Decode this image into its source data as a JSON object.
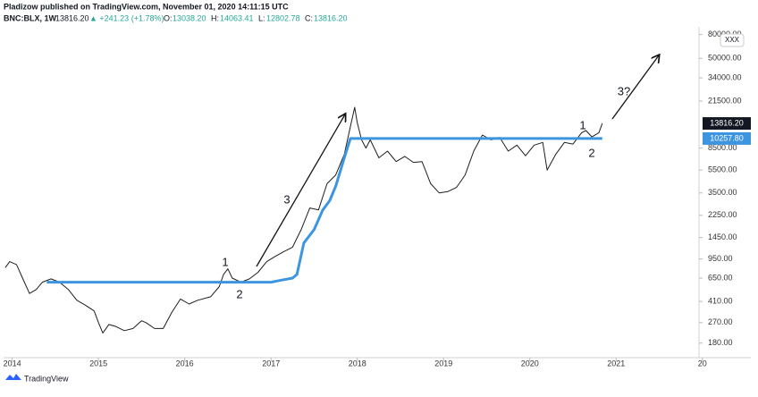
{
  "chart_data": {
    "type": "line",
    "title": "Pladizow published on TradingView.com, November 01, 2020 14:11:15 UTC",
    "quote": {
      "symbol": "BNC:BLX, 1W",
      "last": "13816.20",
      "change": "▲ +241.23 (+1.78%)",
      "o_label": "O:",
      "o": "13038.20",
      "h_label": "H:",
      "h": "14063.41",
      "l_label": "L:",
      "l": "12802.78",
      "c_label": "C:",
      "c": "13816.20"
    },
    "badge": "XXX",
    "footer": "TradingView",
    "log_scale": true,
    "grid": false,
    "xlim": [
      2013.9,
      2021.94
    ],
    "xticks": [
      2014,
      2015,
      2016,
      2017,
      2018,
      2019,
      2020,
      2021,
      {
        "value": 2022,
        "label": "20"
      }
    ],
    "ylim": [
      135,
      90000
    ],
    "yticks": [
      {
        "value": 180,
        "label": "180.00"
      },
      {
        "value": 270,
        "label": "270.00"
      },
      {
        "value": 410,
        "label": "410.00"
      },
      {
        "value": 650,
        "label": "650.00"
      },
      {
        "value": 950,
        "label": "950.00"
      },
      {
        "value": 1450,
        "label": "1450.00"
      },
      {
        "value": 2250,
        "label": "2250.00"
      },
      {
        "value": 3500,
        "label": "3500.00"
      },
      {
        "value": 5500,
        "label": "5500.00"
      },
      {
        "value": 8500,
        "label": "8500.00"
      },
      {
        "value": 21500,
        "label": "21500.00"
      },
      {
        "value": 34000,
        "label": "34000.00"
      },
      {
        "value": 50000,
        "label": "50000.00"
      },
      {
        "value": 80000,
        "label": "80000.00"
      }
    ],
    "series": [
      {
        "name": "BNC:BLX",
        "color": "#1e1e1e",
        "width": 1,
        "tag_color": "#131722",
        "last_label": "13816.20",
        "x": [
          2013.92,
          2013.97,
          2014.05,
          2014.12,
          2014.2,
          2014.28,
          2014.35,
          2014.45,
          2014.55,
          2014.65,
          2014.75,
          2014.85,
          2014.95,
          2015.0,
          2015.05,
          2015.12,
          2015.2,
          2015.3,
          2015.4,
          2015.5,
          2015.55,
          2015.65,
          2015.75,
          2015.85,
          2015.95,
          2016.05,
          2016.15,
          2016.3,
          2016.4,
          2016.45,
          2016.5,
          2016.55,
          2016.65,
          2016.75,
          2016.85,
          2016.95,
          2017.05,
          2017.15,
          2017.25,
          2017.35,
          2017.45,
          2017.55,
          2017.65,
          2017.75,
          2017.85,
          2017.92,
          2017.97,
          2018.0,
          2018.05,
          2018.1,
          2018.15,
          2018.25,
          2018.35,
          2018.45,
          2018.55,
          2018.65,
          2018.75,
          2018.85,
          2018.95,
          2019.05,
          2019.15,
          2019.25,
          2019.35,
          2019.45,
          2019.55,
          2019.65,
          2019.75,
          2019.85,
          2019.95,
          2020.05,
          2020.15,
          2020.2,
          2020.3,
          2020.4,
          2020.5,
          2020.6,
          2020.65,
          2020.72,
          2020.8,
          2020.84
        ],
        "values": [
          800,
          900,
          850,
          650,
          480,
          520,
          600,
          640,
          600,
          520,
          420,
          380,
          340,
          270,
          220,
          260,
          250,
          230,
          240,
          280,
          270,
          240,
          240,
          330,
          430,
          390,
          420,
          450,
          550,
          700,
          780,
          650,
          600,
          640,
          730,
          900,
          1000,
          1100,
          1200,
          1700,
          2600,
          2500,
          4200,
          5000,
          7500,
          13000,
          19000,
          14000,
          10000,
          8500,
          10000,
          7000,
          8000,
          6500,
          7200,
          6400,
          6500,
          4200,
          3500,
          3600,
          3900,
          5000,
          8000,
          11000,
          10000,
          10500,
          8000,
          9000,
          7300,
          9000,
          9500,
          5500,
          7500,
          9500,
          9200,
          11500,
          12000,
          10600,
          11500,
          13816.2
        ]
      },
      {
        "name": "10257.80",
        "color": "#3d95e0",
        "width": 3,
        "tag_color": "#3d95e0",
        "last_label": "10257.80",
        "x": [
          2014.4,
          2017.0,
          2017.1,
          2017.25,
          2017.3,
          2017.38,
          2017.5,
          2017.6,
          2017.68,
          2017.75,
          2017.85,
          2017.92,
          2020.84
        ],
        "values": [
          600,
          600,
          620,
          650,
          700,
          1300,
          1700,
          2500,
          3000,
          4000,
          7000,
          10257.8,
          10257.8
        ]
      }
    ],
    "annotations": [
      "1",
      "2",
      "3",
      "1",
      "2",
      "3?"
    ]
  }
}
